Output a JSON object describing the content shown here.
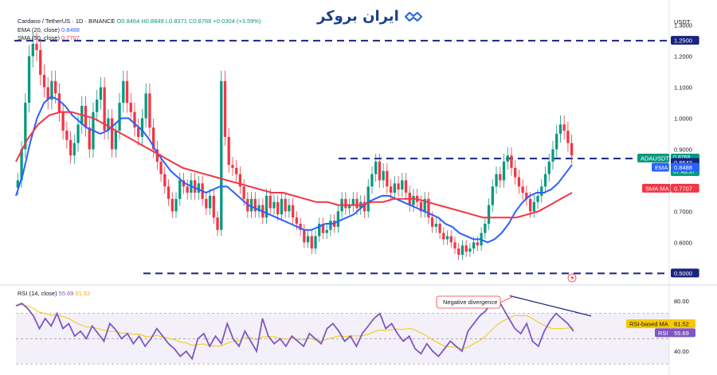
{
  "header": {
    "symbol_line": "Cardano / TetherUS · 1D · BINANCE",
    "ohlc": "O0.8464 H0.8849 L0.8371 C0.8768 +0.0304 (+3.59%)",
    "ema_label": "EMA (20, close)",
    "ema_value": "0.8488",
    "sma_label": "SMA (50, close)",
    "sma_value": "0.7707"
  },
  "logo": {
    "text": "ایران بروکر",
    "icon": "handshake-icon"
  },
  "price_axis": {
    "currency": "USDT",
    "ticks": [
      "1.3000",
      "1.2000",
      "1.1000",
      "1.0000",
      "0.9000",
      "0.7000",
      "0.6000"
    ]
  },
  "tags": {
    "resistance": "1.2500",
    "symbol": "ADAUSDT",
    "price": "0.8768",
    "change": "- 14.27%",
    "countdown": "07:48:37",
    "level_0864": "0.8643",
    "ema": "EMA",
    "ema_value": "0.8488",
    "sma": "SMA:MA",
    "sma_value": "0.7707",
    "support": "0.5000"
  },
  "rsi": {
    "label": "RSI (14, close)",
    "value": "55.69",
    "ma_value": "61.52",
    "ma_tag_label": "RSI-based MA",
    "ma_tag_value": "61.52",
    "tag_label": "RSI",
    "tag_value": "55.69",
    "ticks": [
      "80.00",
      "40.00"
    ],
    "annotation": "Negative divergence"
  },
  "colors": {
    "up": "#089981",
    "down": "#f23645",
    "ema": "#2962ff",
    "sma": "#f23645",
    "rsi": "#7e57c2",
    "rsi_ma": "#f7c800",
    "level": "#1a237e"
  },
  "chart_data": {
    "type": "candlestick",
    "ylim": [
      0.47,
      1.33
    ],
    "levels": [
      1.25,
      0.87,
      0.5
    ],
    "close": [
      0.8,
      0.9,
      1.05,
      1.2,
      1.24,
      1.22,
      1.14,
      1.1,
      1.06,
      1.12,
      1.08,
      1.02,
      0.96,
      0.93,
      0.88,
      0.92,
      0.98,
      1.04,
      0.97,
      0.9,
      1.02,
      1.06,
      1.1,
      0.96,
      1.0,
      0.9,
      0.96,
      1.05,
      1.12,
      1.05,
      1.02,
      0.97,
      0.94,
      1.0,
      1.08,
      0.97,
      0.9,
      0.86,
      0.82,
      0.78,
      0.74,
      0.7,
      0.74,
      0.8,
      0.78,
      0.76,
      0.8,
      0.76,
      0.79,
      0.74,
      0.71,
      0.75,
      0.68,
      0.64,
      1.12,
      0.94,
      0.85,
      0.84,
      0.82,
      0.78,
      0.74,
      0.7,
      0.74,
      0.7,
      0.72,
      0.68,
      0.75,
      0.71,
      0.73,
      0.69,
      0.74,
      0.7,
      0.72,
      0.68,
      0.66,
      0.64,
      0.6,
      0.62,
      0.58,
      0.62,
      0.66,
      0.63,
      0.64,
      0.67,
      0.65,
      0.7,
      0.74,
      0.71,
      0.72,
      0.74,
      0.71,
      0.73,
      0.7,
      0.78,
      0.82,
      0.86,
      0.8,
      0.83,
      0.78,
      0.76,
      0.79,
      0.77,
      0.8,
      0.76,
      0.72,
      0.75,
      0.73,
      0.7,
      0.74,
      0.68,
      0.65,
      0.66,
      0.63,
      0.61,
      0.62,
      0.6,
      0.58,
      0.56,
      0.59,
      0.57,
      0.58,
      0.6,
      0.59,
      0.63,
      0.66,
      0.72,
      0.78,
      0.82,
      0.8,
      0.86,
      0.88,
      0.84,
      0.81,
      0.78,
      0.76,
      0.74,
      0.7,
      0.73,
      0.75,
      0.78,
      0.82,
      0.86,
      0.9,
      0.95,
      0.98,
      0.96,
      0.92,
      0.88
    ],
    "ema": [
      0.75,
      0.82,
      0.92,
      1.0,
      1.05,
      1.07,
      1.06,
      1.04,
      1.01,
      0.99,
      0.97,
      0.96,
      0.95,
      0.96,
      0.98,
      1.0,
      1.0,
      0.98,
      0.96,
      0.93,
      0.89,
      0.86,
      0.83,
      0.81,
      0.79,
      0.78,
      0.77,
      0.76,
      0.77,
      0.78,
      0.78,
      0.76,
      0.74,
      0.72,
      0.71,
      0.7,
      0.69,
      0.68,
      0.67,
      0.66,
      0.65,
      0.64,
      0.64,
      0.65,
      0.66,
      0.66,
      0.67,
      0.68,
      0.69,
      0.71,
      0.73,
      0.74,
      0.75,
      0.75,
      0.74,
      0.73,
      0.72,
      0.71,
      0.7,
      0.69,
      0.68,
      0.66,
      0.65,
      0.63,
      0.62,
      0.61,
      0.61,
      0.6,
      0.61,
      0.63,
      0.66,
      0.7,
      0.73,
      0.75,
      0.76,
      0.76,
      0.77,
      0.79,
      0.82,
      0.85
    ],
    "sma": [
      0.86,
      0.93,
      0.98,
      1.01,
      1.02,
      1.02,
      1.01,
      1.0,
      0.98,
      0.96,
      0.94,
      0.92,
      0.9,
      0.88,
      0.86,
      0.84,
      0.83,
      0.82,
      0.81,
      0.8,
      0.79,
      0.78,
      0.77,
      0.76,
      0.76,
      0.75,
      0.74,
      0.73,
      0.73,
      0.72,
      0.72,
      0.72,
      0.73,
      0.73,
      0.74,
      0.74,
      0.74,
      0.73,
      0.72,
      0.71,
      0.7,
      0.69,
      0.68,
      0.68,
      0.68,
      0.68,
      0.69,
      0.7,
      0.72,
      0.74,
      0.76
    ],
    "rsi": [
      76,
      78,
      74,
      68,
      58,
      66,
      60,
      70,
      58,
      62,
      52,
      56,
      50,
      60,
      54,
      48,
      62,
      57,
      50,
      54,
      46,
      52,
      44,
      50,
      58,
      52,
      46,
      42,
      36,
      40,
      34,
      50,
      54,
      44,
      52,
      46,
      62,
      50,
      44,
      56,
      48,
      40,
      66,
      52,
      46,
      50,
      44,
      52,
      48,
      44,
      54,
      50,
      46,
      58,
      62,
      56,
      48,
      52,
      44,
      54,
      60,
      66,
      70,
      58,
      62,
      54,
      48,
      52,
      42,
      38,
      46,
      40,
      36,
      42,
      48,
      44,
      40,
      56,
      62,
      68,
      72,
      78,
      82,
      74,
      66,
      58,
      54,
      62,
      48,
      44,
      56,
      64,
      70,
      66,
      62,
      56
    ]
  }
}
